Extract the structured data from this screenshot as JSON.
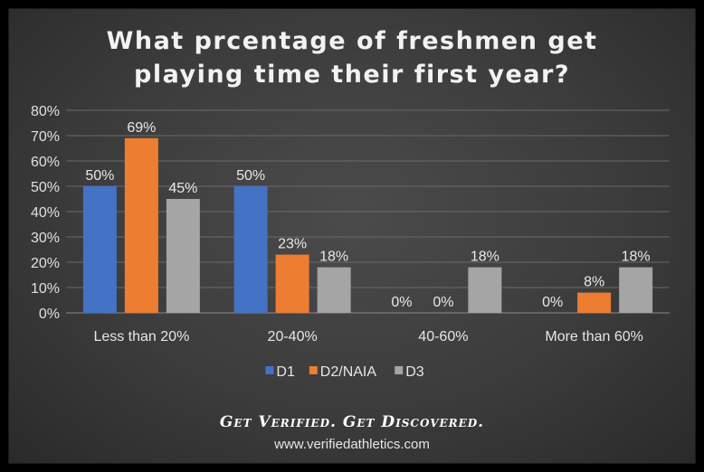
{
  "chart_data": {
    "type": "bar",
    "title_line1": "What prcentage of freshmen get",
    "title_line2": "playing time their first year?",
    "categories": [
      "Less than 20%",
      "20-40%",
      "40-60%",
      "More than 60%"
    ],
    "series": [
      {
        "name": "D1",
        "color": "#4472c4",
        "values": [
          50,
          50,
          0,
          0
        ],
        "labels": [
          "50%",
          "50%",
          "0%",
          "0%"
        ]
      },
      {
        "name": "D2/NAIA",
        "color": "#ed7d31",
        "values": [
          69,
          23,
          0,
          8
        ],
        "labels": [
          "69%",
          "23%",
          "0%",
          "8%"
        ]
      },
      {
        "name": "D3",
        "color": "#a5a5a5",
        "values": [
          45,
          18,
          18,
          18
        ],
        "labels": [
          "45%",
          "18%",
          "18%",
          "18%"
        ]
      }
    ],
    "yticks": [
      "0%",
      "10%",
      "20%",
      "30%",
      "40%",
      "50%",
      "60%",
      "70%",
      "80%"
    ],
    "ylim": [
      0,
      80
    ],
    "grid": true,
    "legend": "bottom"
  },
  "footer": {
    "tagline": "Get Verified. Get Discovered.",
    "url": "www.verifiedathletics.com"
  }
}
